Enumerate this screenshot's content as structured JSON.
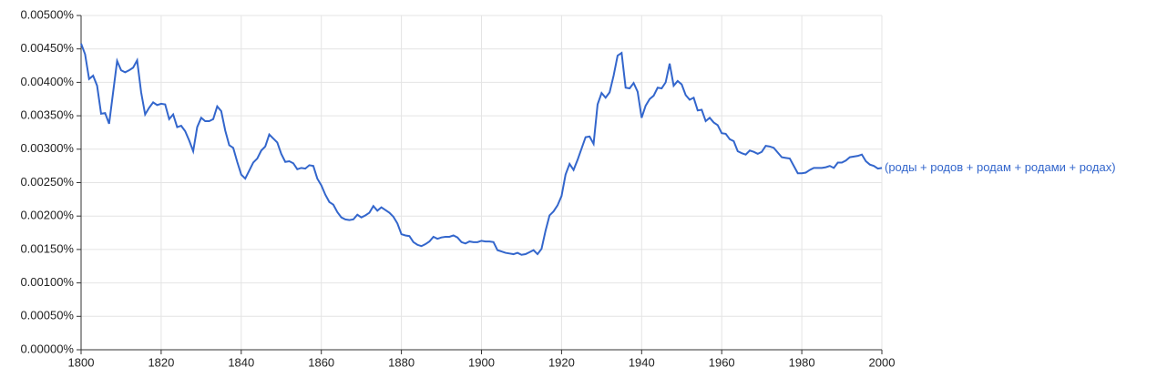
{
  "chart_data": {
    "type": "line",
    "x": [
      1800,
      1801,
      1802,
      1803,
      1804,
      1805,
      1806,
      1807,
      1808,
      1809,
      1810,
      1811,
      1812,
      1813,
      1814,
      1815,
      1816,
      1817,
      1818,
      1819,
      1820,
      1821,
      1822,
      1823,
      1824,
      1825,
      1826,
      1827,
      1828,
      1829,
      1830,
      1831,
      1832,
      1833,
      1834,
      1835,
      1836,
      1837,
      1838,
      1839,
      1840,
      1841,
      1842,
      1843,
      1844,
      1845,
      1846,
      1847,
      1848,
      1849,
      1850,
      1851,
      1852,
      1853,
      1854,
      1855,
      1856,
      1857,
      1858,
      1859,
      1860,
      1861,
      1862,
      1863,
      1864,
      1865,
      1866,
      1867,
      1868,
      1869,
      1870,
      1871,
      1872,
      1873,
      1874,
      1875,
      1876,
      1877,
      1878,
      1879,
      1880,
      1881,
      1882,
      1883,
      1884,
      1885,
      1886,
      1887,
      1888,
      1889,
      1890,
      1891,
      1892,
      1893,
      1894,
      1895,
      1896,
      1897,
      1898,
      1899,
      1900,
      1901,
      1902,
      1903,
      1904,
      1905,
      1906,
      1907,
      1908,
      1909,
      1910,
      1911,
      1912,
      1913,
      1914,
      1915,
      1916,
      1917,
      1918,
      1919,
      1920,
      1921,
      1922,
      1923,
      1924,
      1925,
      1926,
      1927,
      1928,
      1929,
      1930,
      1931,
      1932,
      1933,
      1934,
      1935,
      1936,
      1937,
      1938,
      1939,
      1940,
      1941,
      1942,
      1943,
      1944,
      1945,
      1946,
      1947,
      1948,
      1949,
      1950,
      1951,
      1952,
      1953,
      1954,
      1955,
      1956,
      1957,
      1958,
      1959,
      1960,
      1961,
      1962,
      1963,
      1964,
      1965,
      1966,
      1967,
      1968,
      1969,
      1970,
      1971,
      1972,
      1973,
      1974,
      1975,
      1976,
      1977,
      1978,
      1979,
      1980,
      1981,
      1982,
      1983,
      1984,
      1985,
      1986,
      1987,
      1988,
      1989,
      1990,
      1991,
      1992,
      1993,
      1994,
      1995,
      1996,
      1997,
      1998,
      1999,
      2000
    ],
    "series": [
      {
        "name": "(роды + родов + родам + родами + родах)",
        "color": "#3366cc",
        "values": [
          0.00458,
          0.00442,
          0.00405,
          0.0041,
          0.00395,
          0.00353,
          0.00354,
          0.00338,
          0.00385,
          0.00432,
          0.00418,
          0.00415,
          0.00418,
          0.00422,
          0.00433,
          0.00385,
          0.00352,
          0.00362,
          0.0037,
          0.00366,
          0.00368,
          0.00367,
          0.00345,
          0.00352,
          0.00333,
          0.00335,
          0.00327,
          0.00313,
          0.00297,
          0.00333,
          0.00347,
          0.00342,
          0.00342,
          0.00345,
          0.00364,
          0.00357,
          0.00328,
          0.00306,
          0.00302,
          0.00281,
          0.00262,
          0.00256,
          0.00268,
          0.0028,
          0.00286,
          0.00298,
          0.00304,
          0.00322,
          0.00316,
          0.0031,
          0.00293,
          0.00281,
          0.00282,
          0.00279,
          0.0027,
          0.00272,
          0.00271,
          0.00276,
          0.00275,
          0.00256,
          0.00246,
          0.00232,
          0.00221,
          0.00217,
          0.00206,
          0.00198,
          0.00195,
          0.00194,
          0.00195,
          0.00202,
          0.00198,
          0.00201,
          0.00205,
          0.00215,
          0.00208,
          0.00213,
          0.00209,
          0.00205,
          0.00199,
          0.00189,
          0.00173,
          0.00171,
          0.0017,
          0.00161,
          0.00157,
          0.00155,
          0.00158,
          0.00162,
          0.00169,
          0.00166,
          0.00168,
          0.00169,
          0.00169,
          0.00171,
          0.00168,
          0.00161,
          0.00159,
          0.00162,
          0.00161,
          0.00161,
          0.00163,
          0.00162,
          0.00162,
          0.00161,
          0.00149,
          0.00147,
          0.00145,
          0.00144,
          0.00143,
          0.00145,
          0.00142,
          0.00143,
          0.00146,
          0.00149,
          0.00143,
          0.00151,
          0.00178,
          0.00201,
          0.00207,
          0.00216,
          0.0023,
          0.00262,
          0.00278,
          0.00269,
          0.00284,
          0.00301,
          0.00318,
          0.00319,
          0.00308,
          0.00367,
          0.00384,
          0.00377,
          0.00385,
          0.0041,
          0.0044,
          0.00444,
          0.00392,
          0.00391,
          0.00399,
          0.00386,
          0.00347,
          0.00365,
          0.00375,
          0.0038,
          0.00392,
          0.00391,
          0.004,
          0.00428,
          0.00395,
          0.00402,
          0.00397,
          0.00381,
          0.00374,
          0.00377,
          0.00358,
          0.00359,
          0.00342,
          0.00347,
          0.0034,
          0.00336,
          0.00324,
          0.00323,
          0.00315,
          0.00312,
          0.00297,
          0.00294,
          0.00292,
          0.00298,
          0.00296,
          0.00293,
          0.00296,
          0.00305,
          0.00304,
          0.00302,
          0.00295,
          0.00288,
          0.00287,
          0.00286,
          0.00275,
          0.00264,
          0.00264,
          0.00265,
          0.00269,
          0.00272,
          0.00272,
          0.00272,
          0.00273,
          0.00275,
          0.00272,
          0.0028,
          0.0028,
          0.00283,
          0.00288,
          0.00289,
          0.0029,
          0.00292,
          0.00282,
          0.00277,
          0.00275,
          0.00271,
          0.00272
        ]
      }
    ],
    "xlim": [
      1800,
      2000
    ],
    "xticks": [
      1800,
      1820,
      1840,
      1860,
      1880,
      1900,
      1920,
      1940,
      1960,
      1980,
      2000
    ],
    "ylim": [
      0,
      0.005
    ],
    "yticks": [
      {
        "value": 0,
        "label": "0.00000%"
      },
      {
        "value": 0.0005,
        "label": "0.00050%"
      },
      {
        "value": 0.001,
        "label": "0.00100%"
      },
      {
        "value": 0.0015,
        "label": "0.00150%"
      },
      {
        "value": 0.002,
        "label": "0.00200%"
      },
      {
        "value": 0.0025,
        "label": "0.00250%"
      },
      {
        "value": 0.003,
        "label": "0.00300%"
      },
      {
        "value": 0.0035,
        "label": "0.00350%"
      },
      {
        "value": 0.004,
        "label": "0.00400%"
      },
      {
        "value": 0.0045,
        "label": "0.00450%"
      },
      {
        "value": 0.005,
        "label": "0.00500%"
      }
    ],
    "grid": true
  }
}
